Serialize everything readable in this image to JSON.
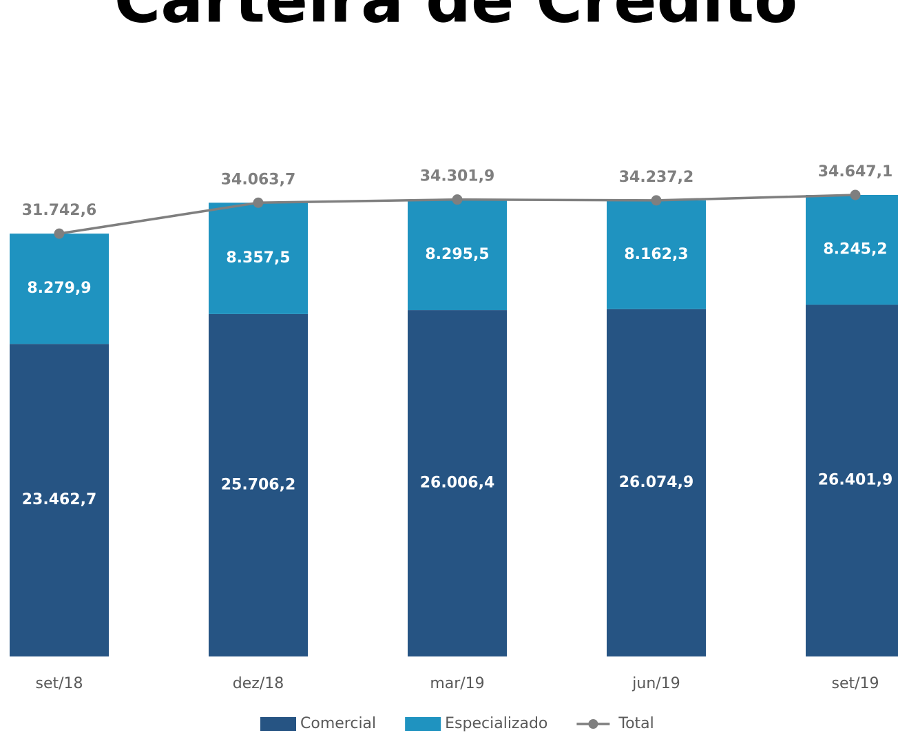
{
  "chart_data": {
    "type": "bar",
    "stacked": true,
    "title": "Carteira de Crédito",
    "categories": [
      "set/18",
      "dez/18",
      "mar/19",
      "jun/19",
      "set/19"
    ],
    "series": [
      {
        "name": "Comercial",
        "color": "#265483",
        "values": [
          23462.7,
          25706.2,
          26006.4,
          26074.9,
          26401.9
        ],
        "value_labels": [
          "23.462,7",
          "25.706,2",
          "26.006,4",
          "26.074,9",
          "26.401,9"
        ]
      },
      {
        "name": "Especializado",
        "color": "#1f93c0",
        "values": [
          8279.9,
          8357.5,
          8295.5,
          8162.3,
          8245.2
        ],
        "value_labels": [
          "8.279,9",
          "8.357,5",
          "8.295,5",
          "8.162,3",
          "8.245,2"
        ]
      },
      {
        "name": "Total",
        "type": "line",
        "color": "#7f7f7f",
        "values": [
          31742.6,
          34063.7,
          34301.9,
          34237.2,
          34647.1
        ],
        "value_labels": [
          "31.742,6",
          "34.063,7",
          "34.301,9",
          "34.237,2",
          "34.647,1"
        ]
      }
    ]
  }
}
